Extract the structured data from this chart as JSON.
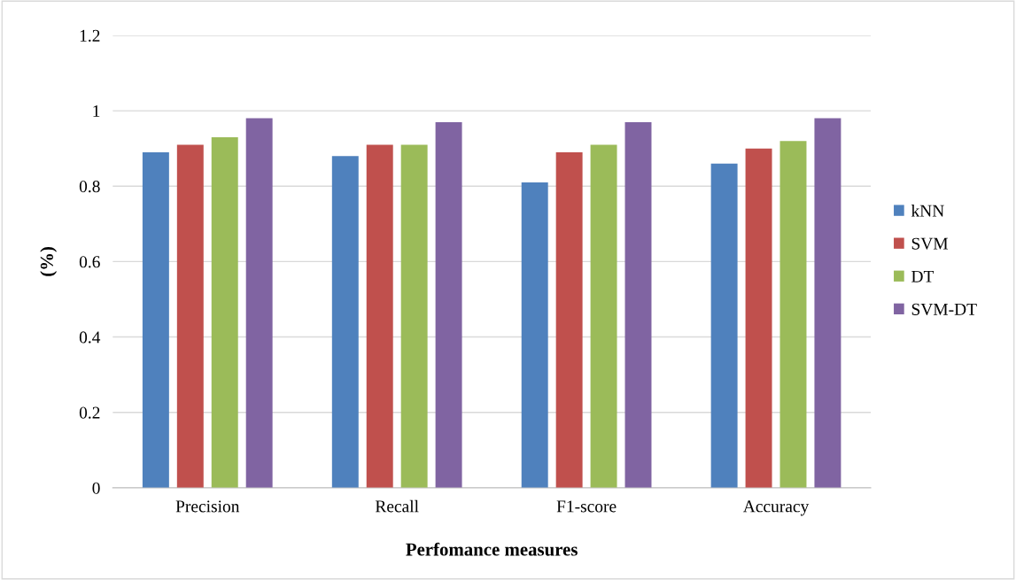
{
  "chart_data": {
    "type": "bar",
    "xlabel": "Perfomance measures",
    "ylabel": "(%)",
    "categories": [
      "Precision",
      "Recall",
      "F1-score",
      "Accuracy"
    ],
    "series": [
      {
        "name": "kNN",
        "color": "#4f81bd",
        "values": [
          0.89,
          0.88,
          0.81,
          0.86
        ]
      },
      {
        "name": "SVM",
        "color": "#c0504d",
        "values": [
          0.91,
          0.91,
          0.89,
          0.9
        ]
      },
      {
        "name": "DT",
        "color": "#9bbb59",
        "values": [
          0.93,
          0.91,
          0.91,
          0.92
        ]
      },
      {
        "name": "SVM-DT",
        "color": "#8064a2",
        "values": [
          0.98,
          0.97,
          0.97,
          0.98
        ]
      }
    ],
    "ylim": [
      0,
      1.2
    ],
    "yticks": [
      0,
      0.2,
      0.4,
      0.6,
      0.8,
      1,
      1.2
    ],
    "grid": "y",
    "legend": "right"
  }
}
